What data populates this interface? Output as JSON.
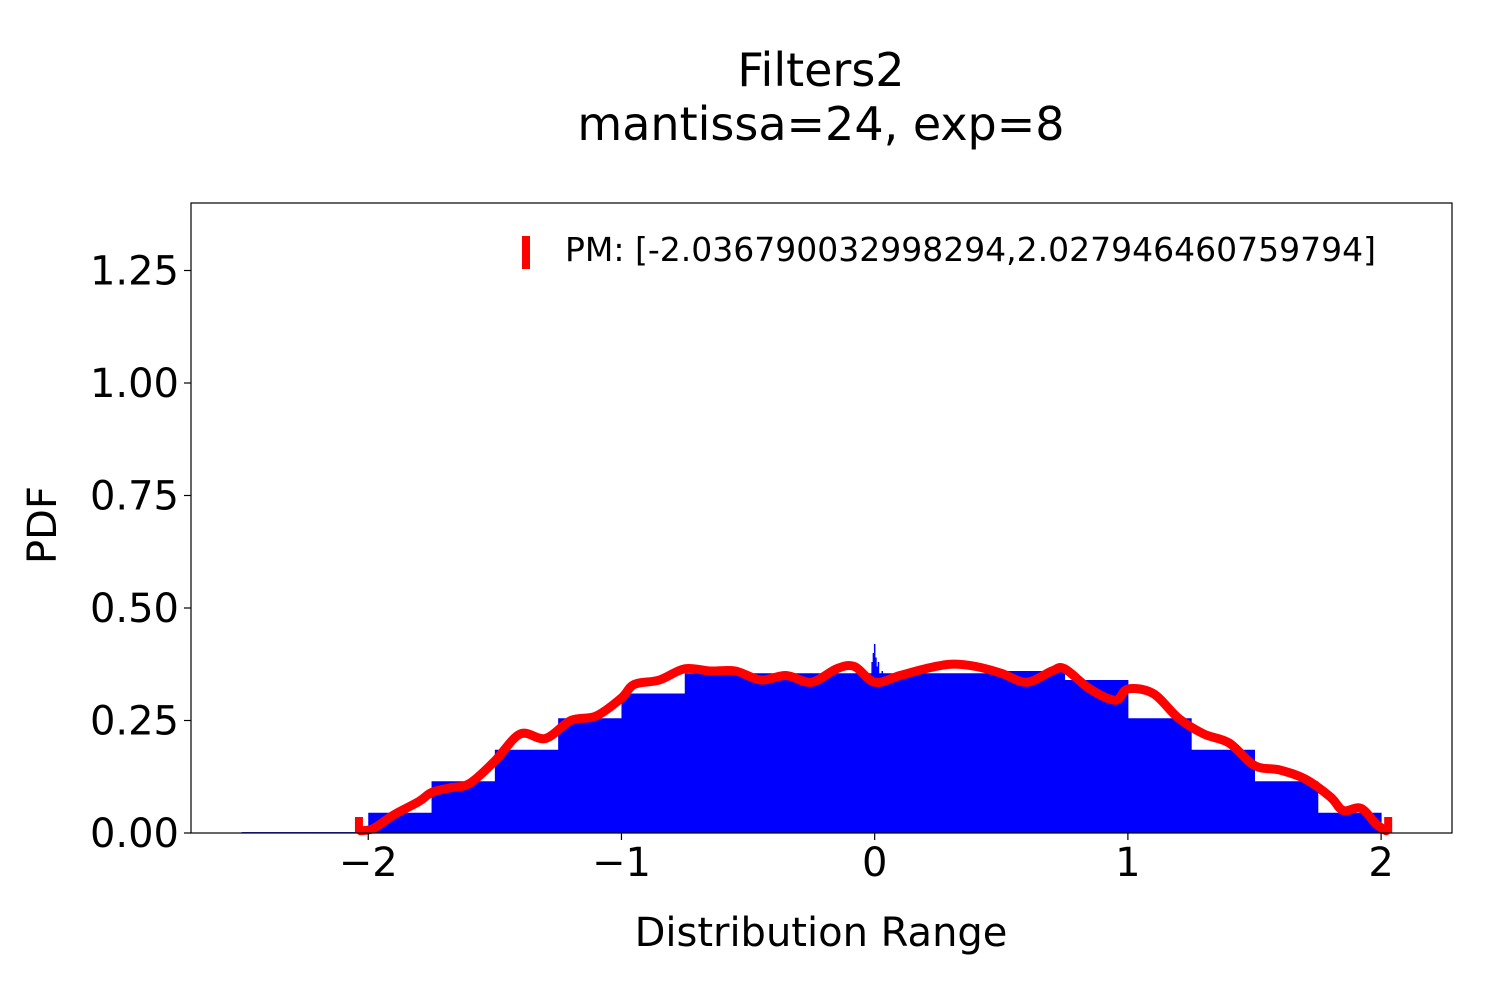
{
  "chart_data": {
    "type": "bar",
    "title": "Filters2",
    "subtitle": "mantissa=24, exp=8",
    "xlabel": "Distribution Range",
    "ylabel": "PDF",
    "xlim": [
      -2.7,
      2.28
    ],
    "ylim": [
      0,
      1.4
    ],
    "xticks": [
      -2,
      -1,
      0,
      1,
      2
    ],
    "xtick_labels": [
      "−2",
      "−1",
      "0",
      "1",
      "2"
    ],
    "yticks": [
      0,
      0.25,
      0.5,
      0.75,
      1.0,
      1.25
    ],
    "ytick_labels": [
      "0.00",
      "0.25",
      "0.50",
      "0.75",
      "1.00",
      "1.25"
    ],
    "grid": false,
    "legend_position": "top-right",
    "colors": {
      "histogram": "#0000ff",
      "density": "#ff0000",
      "range_marker": "#ff0000"
    },
    "histogram": {
      "name": "",
      "bin_edges": [
        -2.5,
        -2.25,
        -2.0,
        -1.75,
        -1.5,
        -1.25,
        -1.0,
        -0.75,
        -0.5,
        -0.25,
        0.0,
        0.25,
        0.5,
        0.75,
        1.0,
        1.25,
        1.5,
        1.75,
        2.0
      ],
      "values": [
        0.002,
        0.002,
        0.045,
        0.115,
        0.185,
        0.255,
        0.31,
        0.355,
        0.355,
        0.355,
        0.355,
        0.355,
        0.36,
        0.34,
        0.255,
        0.185,
        0.115,
        0.045
      ]
    },
    "density": {
      "name": "",
      "x": [
        -2.03,
        -1.98,
        -1.9,
        -1.8,
        -1.75,
        -1.68,
        -1.6,
        -1.5,
        -1.4,
        -1.3,
        -1.2,
        -1.1,
        -1.0,
        -0.95,
        -0.85,
        -0.75,
        -0.65,
        -0.55,
        -0.45,
        -0.35,
        -0.25,
        -0.15,
        -0.08,
        0.0,
        0.1,
        0.2,
        0.3,
        0.4,
        0.5,
        0.6,
        0.7,
        0.75,
        0.85,
        0.95,
        1.0,
        1.1,
        1.2,
        1.3,
        1.4,
        1.5,
        1.6,
        1.7,
        1.8,
        1.85,
        1.92,
        1.98,
        2.02
      ],
      "y": [
        0.005,
        0.01,
        0.04,
        0.07,
        0.09,
        0.1,
        0.11,
        0.16,
        0.22,
        0.21,
        0.25,
        0.26,
        0.3,
        0.33,
        0.34,
        0.365,
        0.36,
        0.36,
        0.34,
        0.35,
        0.335,
        0.365,
        0.37,
        0.335,
        0.35,
        0.365,
        0.375,
        0.37,
        0.355,
        0.335,
        0.36,
        0.365,
        0.32,
        0.295,
        0.32,
        0.31,
        0.255,
        0.22,
        0.2,
        0.15,
        0.14,
        0.12,
        0.08,
        0.05,
        0.055,
        0.02,
        0.005
      ]
    },
    "spikes": {
      "x": [
        -0.01,
        -0.005,
        0.0,
        0.005,
        0.01,
        0.015,
        0.03
      ],
      "y": [
        0.38,
        0.4,
        0.42,
        0.39,
        0.37,
        0.38,
        0.36
      ]
    },
    "range_marker": {
      "label": "PM: [-2.036790032998294,2.027946460759794]",
      "min": -2.036790032998294,
      "max": 2.027946460759794
    }
  }
}
